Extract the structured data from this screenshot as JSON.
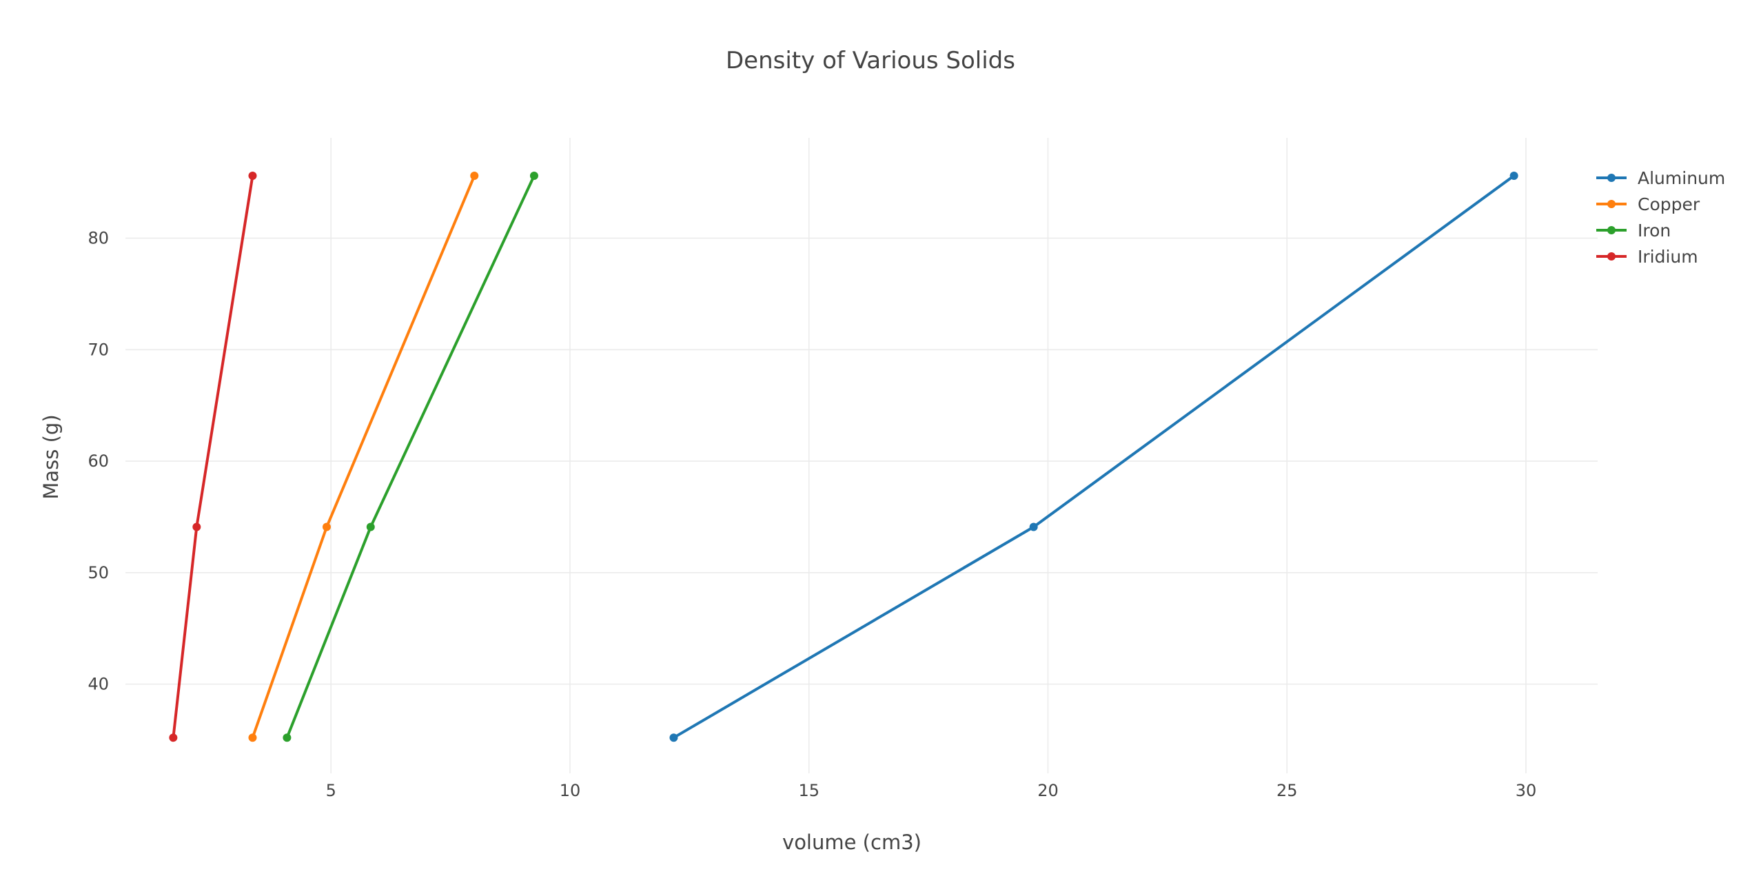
{
  "chart_data": {
    "type": "line",
    "title": "Density of Various Solids",
    "xlabel": "volume (cm3)",
    "ylabel": "Mass (g)",
    "xlim": [
      0.7,
      31.5
    ],
    "ylim": [
      32,
      89
    ],
    "xticks": [
      5,
      10,
      15,
      20,
      25,
      30
    ],
    "yticks": [
      40,
      50,
      60,
      70,
      80
    ],
    "grid": true,
    "legend_position": "top-right",
    "mode": "lines+markers",
    "series": [
      {
        "name": "Aluminum",
        "color": "#1f77b4",
        "x": [
          12.17,
          19.7,
          29.75
        ],
        "y": [
          35.2,
          54.1,
          85.6
        ]
      },
      {
        "name": "Copper",
        "color": "#ff7f0e",
        "x": [
          3.36,
          4.91,
          8.0
        ],
        "y": [
          35.2,
          54.1,
          85.6
        ]
      },
      {
        "name": "Iron",
        "color": "#2ca02c",
        "x": [
          4.08,
          5.83,
          9.25
        ],
        "y": [
          35.2,
          54.1,
          85.6
        ]
      },
      {
        "name": "Iridium",
        "color": "#d62728",
        "x": [
          1.7,
          2.19,
          3.36
        ],
        "y": [
          35.2,
          54.1,
          85.6
        ]
      }
    ]
  }
}
